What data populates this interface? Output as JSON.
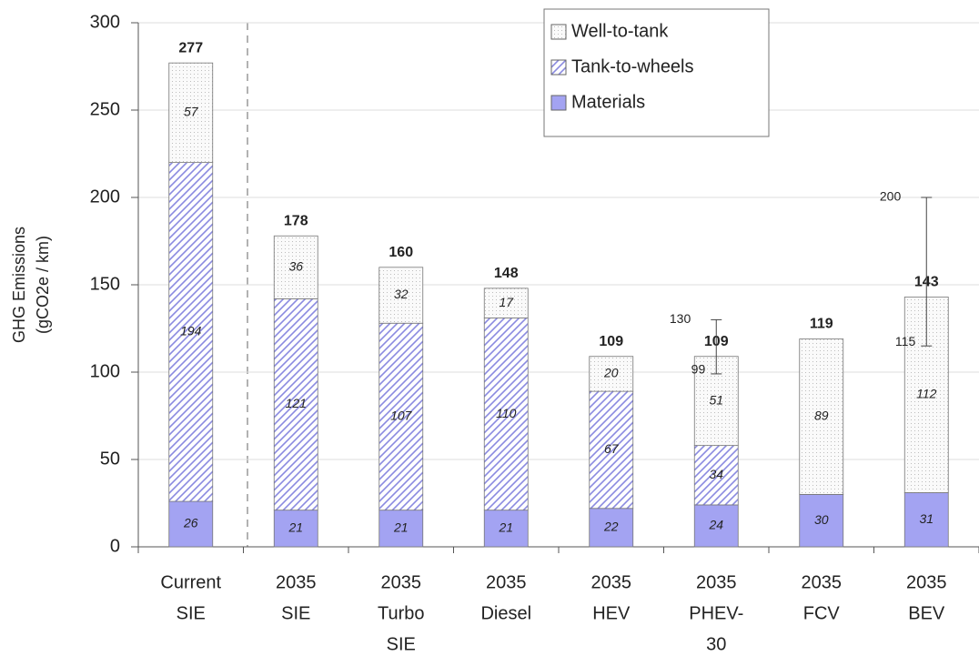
{
  "chart_data": {
    "type": "stacked_bar",
    "ylabel": [
      "GHG Emissions",
      "(gCO2e / km)"
    ],
    "categories": [
      [
        "Current",
        "SIE"
      ],
      [
        "2035",
        "SIE"
      ],
      [
        "2035",
        "Turbo",
        "SIE"
      ],
      [
        "2035",
        "Diesel"
      ],
      [
        "2035",
        "HEV"
      ],
      [
        "2035",
        "PHEV-",
        "30"
      ],
      [
        "2035",
        "FCV"
      ],
      [
        "2035",
        "BEV"
      ]
    ],
    "series": [
      {
        "name": "Materials",
        "color": "#a3a3f2",
        "pattern": "solid",
        "values": [
          26,
          21,
          21,
          21,
          22,
          24,
          30,
          31
        ]
      },
      {
        "name": "Tank-to-wheels",
        "color": "#8a8ae0",
        "pattern": "hatch",
        "values": [
          194,
          121,
          107,
          110,
          67,
          34,
          null,
          null
        ]
      },
      {
        "name": "Well-to-tank",
        "color": "#bdbdbd",
        "pattern": "dots",
        "values": [
          57,
          36,
          32,
          17,
          20,
          51,
          89,
          112
        ]
      }
    ],
    "totals": [
      277,
      178,
      160,
      148,
      109,
      109,
      119,
      143
    ],
    "error_low": [
      null,
      null,
      null,
      null,
      null,
      99,
      null,
      115
    ],
    "error_high": [
      null,
      null,
      null,
      null,
      null,
      130,
      null,
      200
    ],
    "ylim": [
      0,
      300
    ],
    "yticks": [
      0,
      50,
      100,
      150,
      200,
      250,
      300
    ],
    "grid": true,
    "legend": "top"
  }
}
